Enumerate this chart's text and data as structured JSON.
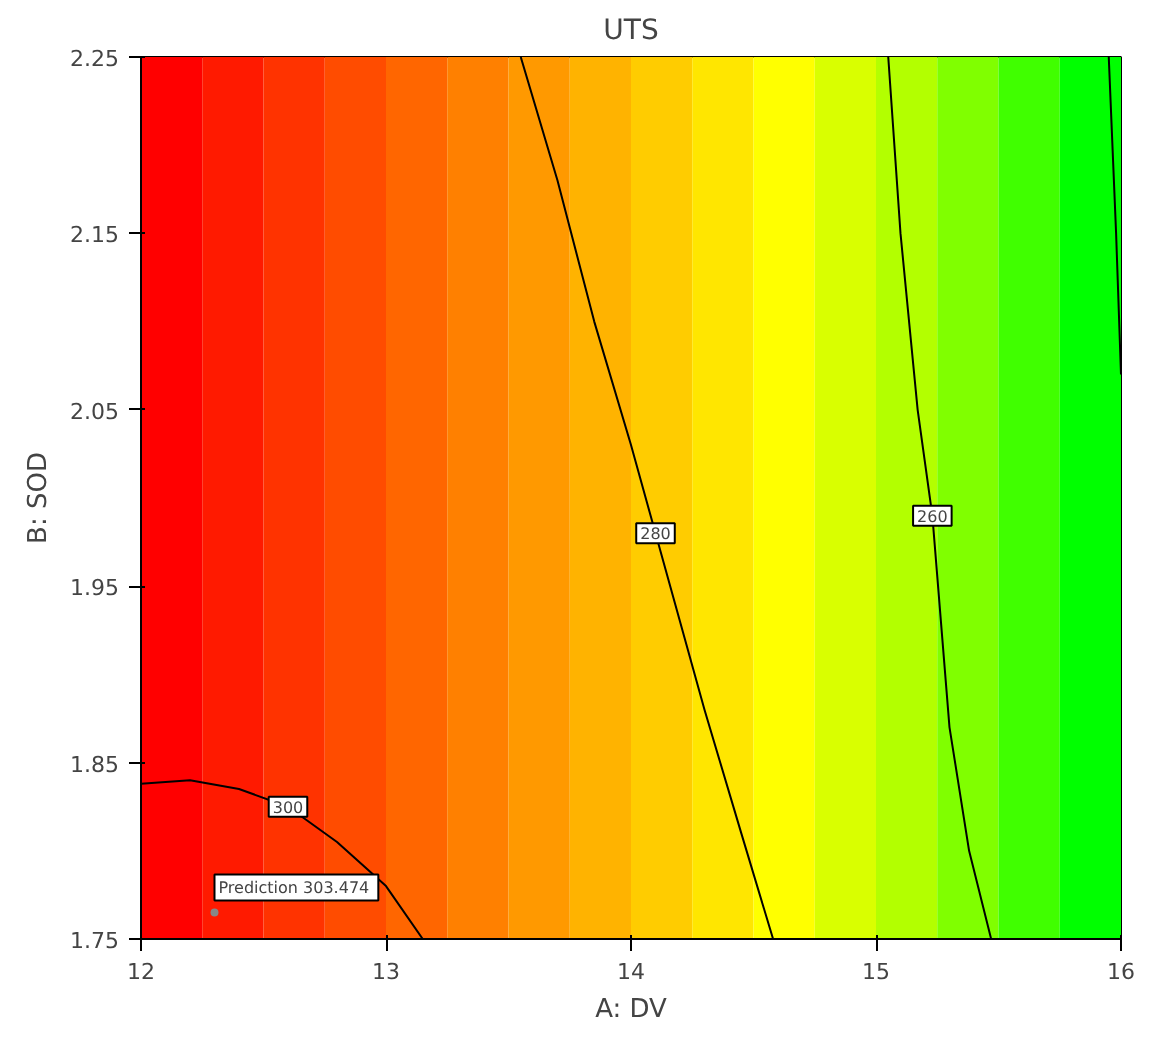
{
  "chart_data": {
    "type": "line",
    "title": "UTS",
    "xlabel": "A: DV",
    "ylabel": "B: SOD",
    "xlim": [
      12,
      16
    ],
    "xticks": [
      12,
      13,
      14,
      15,
      16
    ],
    "ylim": [
      1.75,
      2.25
    ],
    "yticks": [
      1.75,
      1.85,
      1.95,
      2.05,
      2.15,
      2.25
    ],
    "grid": false,
    "marker": "none",
    "line_style": "solid",
    "series": [
      {
        "name": "300",
        "color": "#000000",
        "x": [
          12,
          12.2,
          12.4,
          12.6,
          12.8,
          13.0,
          13.15
        ],
        "values": [
          1.838,
          1.84,
          1.835,
          1.825,
          1.805,
          1.78,
          1.75
        ]
      },
      {
        "name": "280",
        "color": "#000000",
        "x": [
          13.55,
          13.7,
          13.85,
          14.0,
          14.1,
          14.3,
          14.45,
          14.58
        ],
        "values": [
          2.25,
          2.18,
          2.1,
          2.03,
          1.98,
          1.88,
          1.81,
          1.75
        ]
      },
      {
        "name": "260",
        "color": "#000000",
        "x": [
          15.05,
          15.1,
          15.17,
          15.23,
          15.3,
          15.38,
          15.47
        ],
        "values": [
          2.25,
          2.15,
          2.05,
          1.99,
          1.87,
          1.8,
          1.75
        ]
      },
      {
        "color": "#000000",
        "x": [
          15.95,
          15.98,
          16
        ],
        "values": [
          2.25,
          2.15,
          2.07
        ]
      }
    ],
    "bands": [
      {
        "axis": "x",
        "from": 12,
        "to": 12.25,
        "color": "#ff0000"
      },
      {
        "axis": "x",
        "from": 12.25,
        "to": 12.5,
        "color": "#ff1a00"
      },
      {
        "axis": "x",
        "from": 12.5,
        "to": 12.75,
        "color": "#ff3300"
      },
      {
        "axis": "x",
        "from": 12.75,
        "to": 13,
        "color": "#ff4c00"
      },
      {
        "axis": "x",
        "from": 13,
        "to": 13.25,
        "color": "#ff6600"
      },
      {
        "axis": "x",
        "from": 13.25,
        "to": 13.5,
        "color": "#ff8000"
      },
      {
        "axis": "x",
        "from": 13.5,
        "to": 13.75,
        "color": "#ff9900"
      },
      {
        "axis": "x",
        "from": 13.75,
        "to": 14,
        "color": "#ffb300"
      },
      {
        "axis": "x",
        "from": 14,
        "to": 14.25,
        "color": "#ffcc00"
      },
      {
        "axis": "x",
        "from": 14.25,
        "to": 14.5,
        "color": "#ffe600"
      },
      {
        "axis": "x",
        "from": 14.5,
        "to": 14.75,
        "color": "#ffff00"
      },
      {
        "axis": "x",
        "from": 14.75,
        "to": 15,
        "color": "#d9ff00"
      },
      {
        "axis": "x",
        "from": 15,
        "to": 15.25,
        "color": "#b3ff00"
      },
      {
        "axis": "x",
        "from": 15.25,
        "to": 15.5,
        "color": "#80ff00"
      },
      {
        "axis": "x",
        "from": 15.5,
        "to": 15.75,
        "color": "#40ff00"
      },
      {
        "axis": "x",
        "from": 15.75,
        "to": 16,
        "color": "#00ff00"
      }
    ],
    "annotations": [
      {
        "text": "Prediction  303.474",
        "x": 12.3,
        "y": 1.765
      }
    ]
  }
}
